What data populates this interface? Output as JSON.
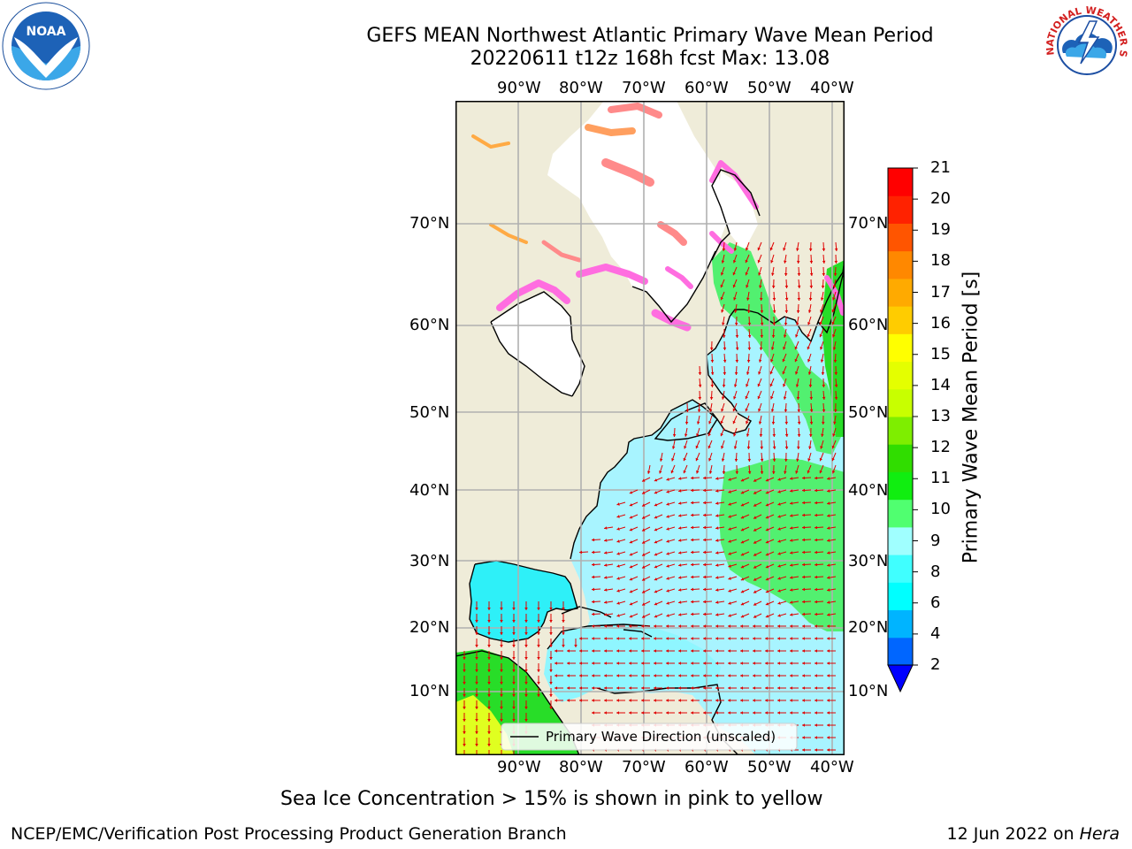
{
  "title": {
    "line1": "GEFS MEAN Northwest Atlantic Primary Wave Mean Period",
    "line2": "20220611 t12z 168h fcst   Max: 13.08"
  },
  "logos": {
    "left_text": "NOAA",
    "left_ring": "NATIONAL OCEANIC AND ATMOSPHERIC ADMINISTRATION · U.S. DEPARTMENT OF COMMERCE",
    "right_ring": "NATIONAL WEATHER SERVICE"
  },
  "map": {
    "lon_labels": [
      "90°W",
      "80°W",
      "70°W",
      "60°W",
      "50°W",
      "40°W"
    ],
    "lat_labels": [
      "70°N",
      "60°N",
      "50°N",
      "40°N",
      "30°N",
      "20°N",
      "10°N"
    ],
    "legend_label": "Primary Wave Direction (unscaled)"
  },
  "colorbar": {
    "label": "Primary Wave Mean Period [s]",
    "ticks": [
      "2",
      "4",
      "6",
      "8",
      "9",
      "10",
      "11",
      "12",
      "13",
      "14",
      "15",
      "16",
      "17",
      "18",
      "19",
      "20",
      "21"
    ],
    "colors": [
      "#0066ff",
      "#00b4ff",
      "#00ffff",
      "#40ffff",
      "#a0ffff",
      "#50ff70",
      "#10ee10",
      "#30dd00",
      "#7eee00",
      "#c8ff00",
      "#e4ff00",
      "#ffff00",
      "#ffcc00",
      "#ffaa00",
      "#ff8800",
      "#ff5500",
      "#ff2200",
      "#ff0000"
    ],
    "under_color": "#0000ff"
  },
  "note": "Sea Ice Concentration > 15% is shown in pink to yellow",
  "footer": {
    "left": "NCEP/EMC/Verification Post Processing Product Generation Branch",
    "date": "12 Jun 2022 on ",
    "machine": "Hera"
  }
}
